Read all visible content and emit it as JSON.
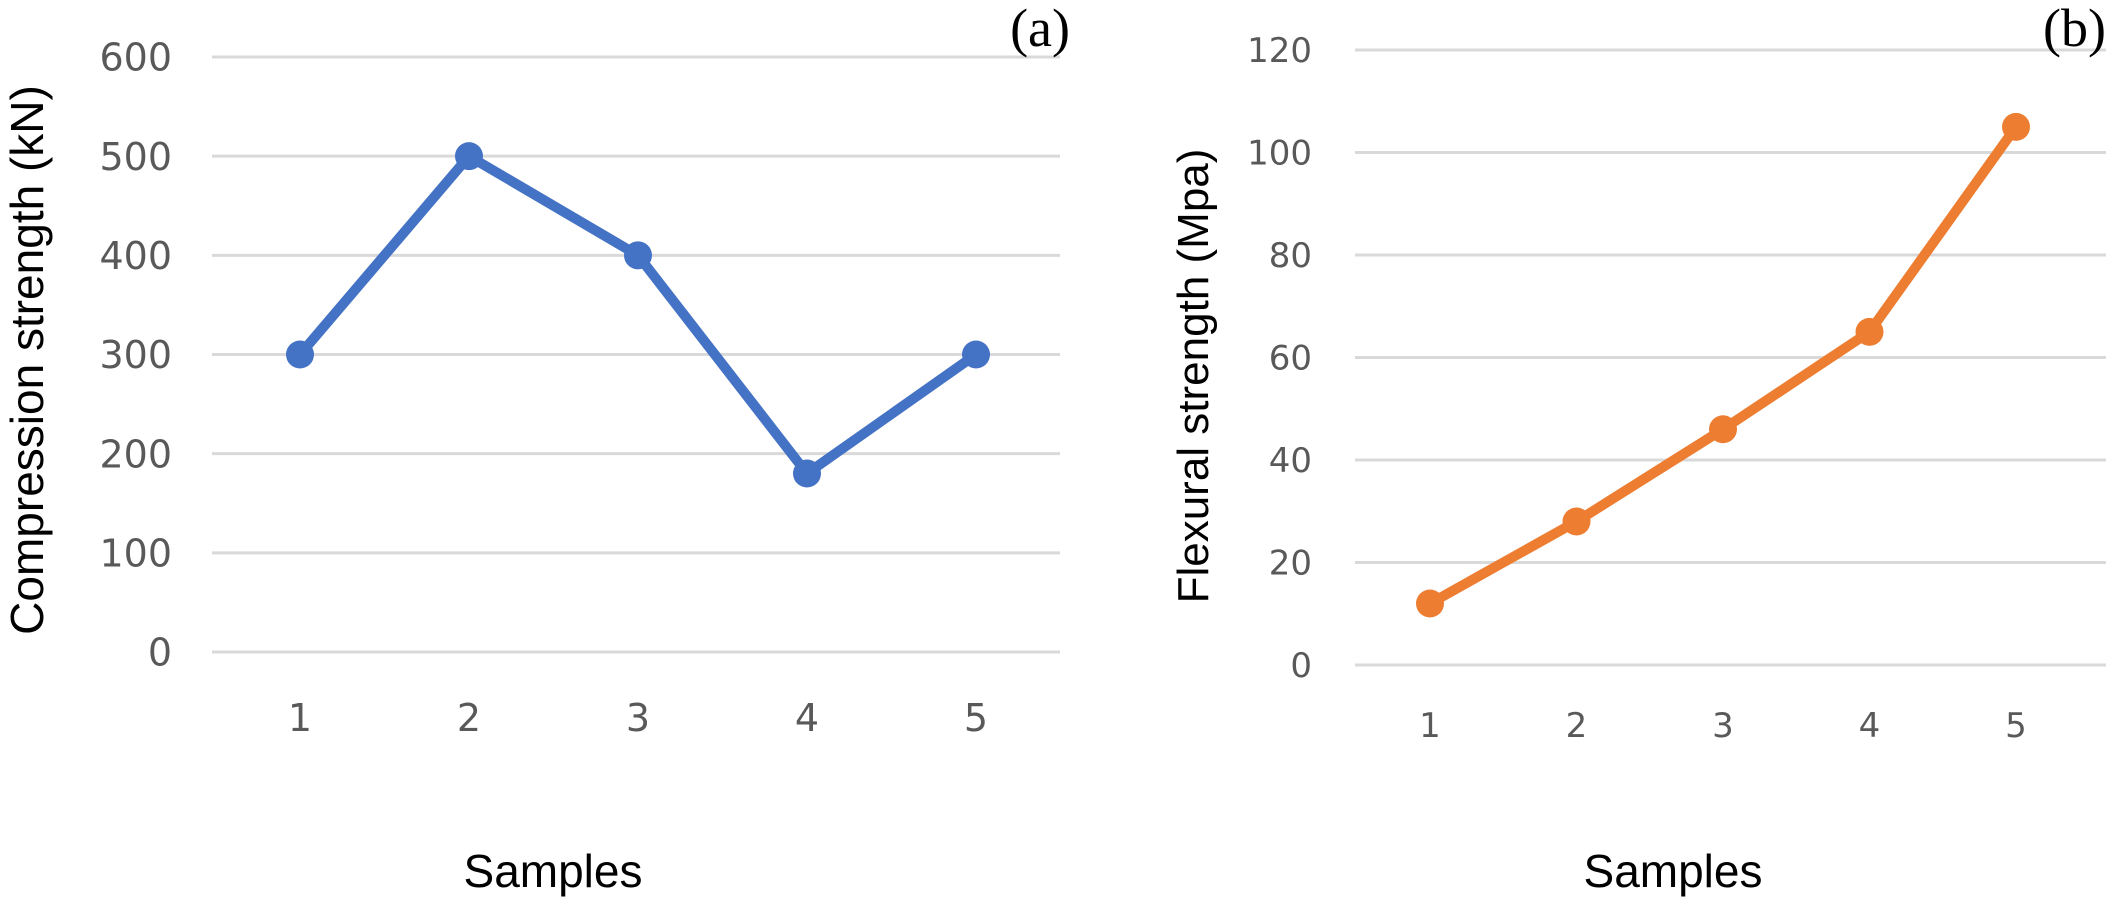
{
  "chart_data": [
    {
      "type": "line",
      "panel_label": "(a)",
      "title": "",
      "xlabel": "Samples",
      "ylabel": "Compression strength (kN)",
      "categories": [
        "1",
        "2",
        "3",
        "4",
        "5"
      ],
      "yticks": [
        "0",
        "100",
        "200",
        "300",
        "400",
        "500",
        "600"
      ],
      "ylim": [
        0,
        600
      ],
      "grid": true,
      "series": [
        {
          "name": "Compression strength",
          "color": "#4472c4",
          "values": [
            300,
            500,
            400,
            180,
            300
          ]
        }
      ]
    },
    {
      "type": "line",
      "panel_label": "(b)",
      "title": "",
      "xlabel": "Samples",
      "ylabel": "Flexural strength (Mpa)",
      "categories": [
        "1",
        "2",
        "3",
        "4",
        "5"
      ],
      "yticks": [
        "0",
        "20",
        "40",
        "60",
        "80",
        "100",
        "120"
      ],
      "ylim": [
        0,
        120
      ],
      "grid": true,
      "series": [
        {
          "name": "Flexural strength",
          "color": "#ed7d31",
          "values": [
            12,
            28,
            46,
            65,
            105
          ]
        }
      ]
    }
  ]
}
